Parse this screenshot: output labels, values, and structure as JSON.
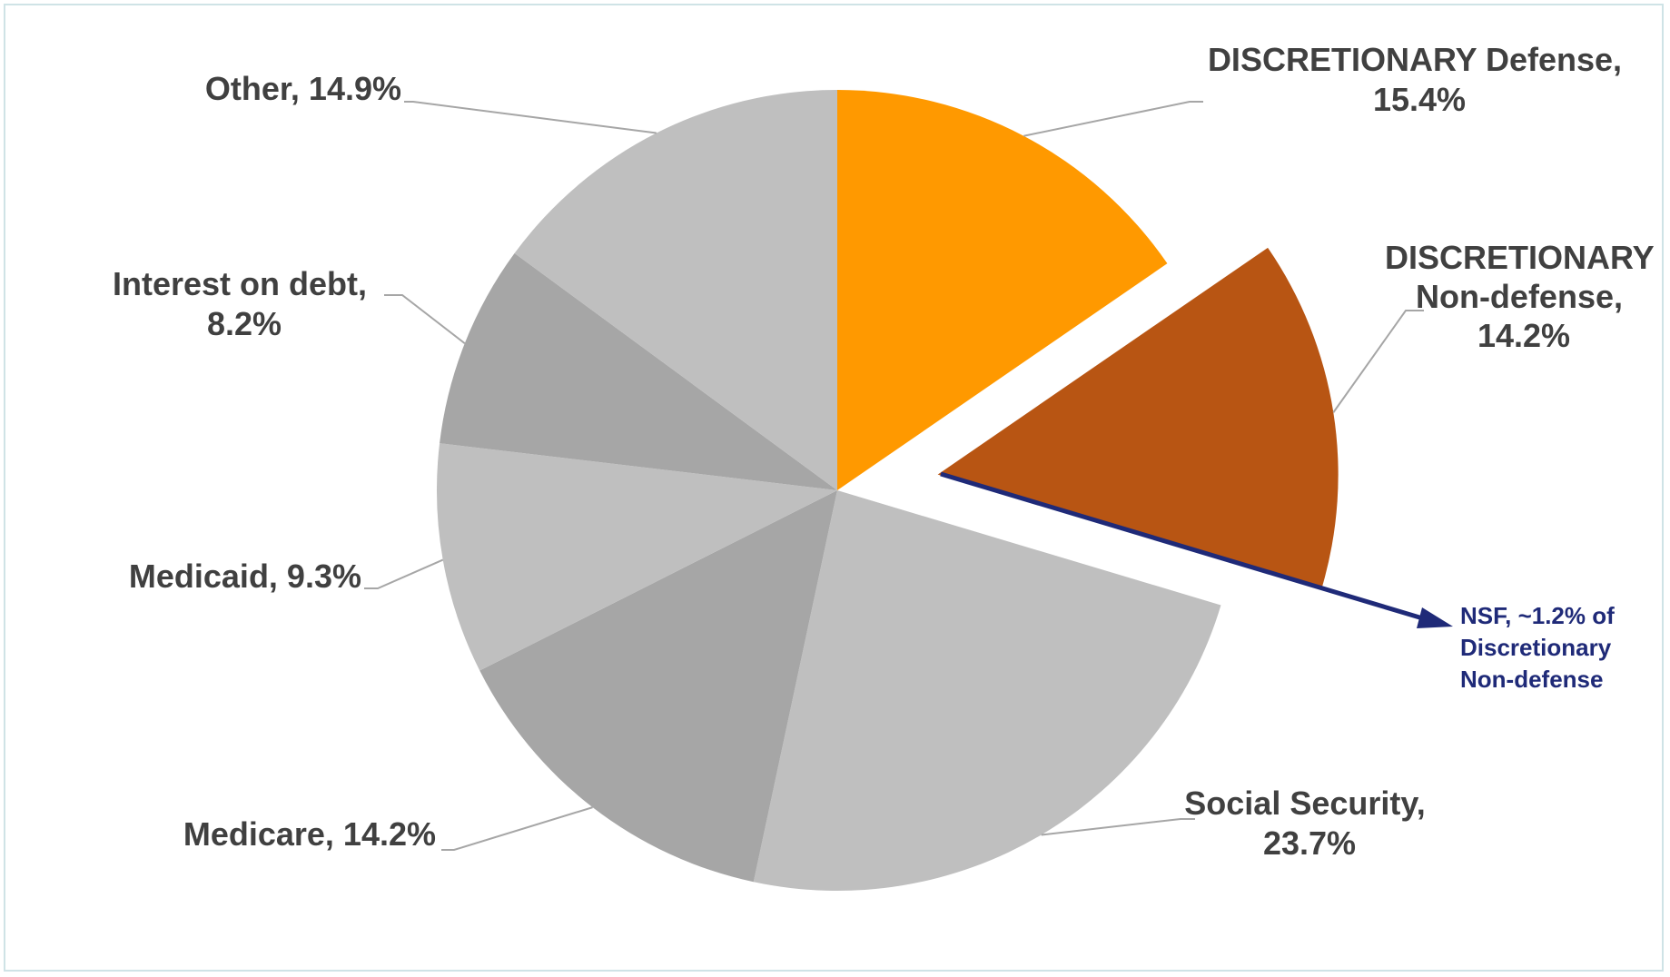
{
  "chart_data": {
    "type": "pie",
    "slices": [
      {
        "label": "DISCRETIONARY Defense",
        "value": 15.4,
        "value_label": "15.4%",
        "color": "#ff9900",
        "exploded": false
      },
      {
        "label": "DISCRETIONARY Non-defense",
        "value": 14.2,
        "value_label": "14.2%",
        "color": "#b85513",
        "exploded": true
      },
      {
        "label": "Social Security",
        "value": 23.7,
        "value_label": "23.7%",
        "color": "#bfbfbf",
        "exploded": false
      },
      {
        "label": "Medicare",
        "value": 14.2,
        "value_label": "14.2%",
        "color": "#a6a6a6",
        "exploded": false
      },
      {
        "label": "Medicaid",
        "value": 9.3,
        "value_label": "9.3%",
        "color": "#bfbfbf",
        "exploded": false
      },
      {
        "label": "Interest on debt",
        "value": 8.2,
        "value_label": "8.2%",
        "color": "#a6a6a6",
        "exploded": false
      },
      {
        "label": "Other",
        "value": 14.9,
        "value_label": "14.9%",
        "color": "#bfbfbf",
        "exploded": false
      }
    ],
    "annotation": {
      "lines": [
        "NSF, ~1.2% of",
        "Discretionary",
        "Non-defense"
      ],
      "color": "#1f2a78"
    },
    "legend": "none"
  },
  "labels": {
    "defense": [
      "DISCRETIONARY Defense,",
      "15.4%"
    ],
    "nondefense": [
      "DISCRETIONARY",
      "Non-defense,",
      "14.2%"
    ],
    "social_security": [
      "Social Security,",
      "23.7%"
    ],
    "medicare": [
      "Medicare, 14.2%"
    ],
    "medicaid": [
      "Medicaid, 9.3%"
    ],
    "interest": [
      "Interest on debt,",
      "8.2%"
    ],
    "other": [
      "Other, 14.9%"
    ]
  }
}
